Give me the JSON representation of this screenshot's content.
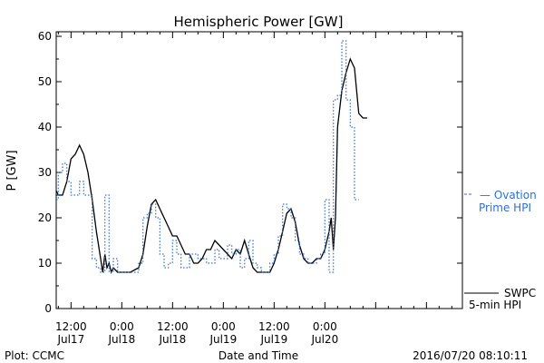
{
  "chart_data": {
    "type": "line",
    "title": "Hemispheric Power [GW]",
    "ylabel": "P [GW]",
    "xlabel": "Date and Time",
    "ylim": [
      0,
      61
    ],
    "yticks": [
      0,
      10,
      20,
      30,
      40,
      50,
      60
    ],
    "x_unit": "hours since 2016-07-17 00:00 UT",
    "xlim": [
      8.5,
      104.5
    ],
    "xticks": [
      {
        "x": 12,
        "line1": "12:00",
        "line2": "Jul17"
      },
      {
        "x": 24,
        "line1": "0:00",
        "line2": "Jul18"
      },
      {
        "x": 36,
        "line1": "12:00",
        "line2": "Jul18"
      },
      {
        "x": 48,
        "line1": "0:00",
        "line2": "Jul19"
      },
      {
        "x": 60,
        "line1": "12:00",
        "line2": "Jul19"
      },
      {
        "x": 72,
        "line1": "0:00",
        "line2": "Jul20"
      }
    ],
    "series": [
      {
        "name": "SWPC 5-min HPI",
        "color": "#000000",
        "style": "solid",
        "x": [
          8.5,
          9.0,
          10.0,
          11.0,
          12.0,
          13.0,
          14.0,
          15.0,
          16.0,
          17.0,
          18.0,
          19.0,
          19.5,
          20.0,
          20.5,
          21.0,
          21.5,
          22.0,
          23.0,
          24.0,
          26.0,
          28.0,
          29.0,
          30.0,
          31.0,
          32.0,
          33.0,
          34.0,
          35.0,
          36.0,
          37.0,
          38.0,
          39.0,
          40.0,
          41.0,
          42.0,
          43.0,
          44.0,
          45.0,
          46.0,
          47.0,
          48.0,
          49.0,
          50.0,
          51.0,
          52.0,
          53.0,
          54.0,
          55.0,
          56.0,
          57.0,
          58.0,
          59.0,
          60.0,
          61.0,
          62.0,
          63.0,
          64.0,
          65.0,
          66.0,
          67.0,
          68.0,
          69.0,
          70.0,
          71.0,
          72.0,
          73.0,
          73.5,
          74.0,
          74.5,
          75.0,
          76.0,
          77.0,
          78.0,
          79.0,
          80.0,
          81.0,
          82.0
        ],
        "y": [
          26,
          25,
          25,
          28,
          33,
          34,
          36,
          34,
          30,
          24,
          17,
          11,
          8,
          12,
          9,
          10,
          8,
          9,
          8,
          8,
          8,
          9,
          12,
          18,
          23,
          24,
          22,
          20,
          18,
          16,
          16,
          14,
          12,
          12,
          10,
          10,
          11,
          13,
          13,
          15,
          14,
          13,
          12,
          11,
          13,
          12,
          15,
          12,
          9,
          8,
          8,
          8,
          8,
          10,
          13,
          17,
          21,
          22,
          19,
          14,
          11,
          10,
          10,
          11,
          11,
          13,
          17,
          20,
          13,
          20,
          40,
          48,
          52,
          55,
          53,
          43,
          42,
          42
        ]
      },
      {
        "name": "Ovation Prime HPI",
        "color": "#2e6fd6",
        "style": "dotted",
        "x": [
          8.5,
          9.0,
          10.0,
          11.0,
          12.0,
          13.0,
          14.0,
          15.0,
          16.0,
          17.0,
          18.0,
          19.0,
          20.0,
          21.0,
          22.0,
          23.0,
          24.0,
          26.0,
          28.0,
          29.0,
          30.0,
          31.0,
          32.0,
          33.0,
          34.0,
          35.0,
          36.0,
          37.0,
          38.0,
          39.0,
          40.0,
          41.0,
          42.0,
          43.0,
          44.0,
          45.0,
          46.0,
          47.0,
          48.0,
          49.0,
          50.0,
          51.0,
          52.0,
          53.0,
          54.0,
          55.0,
          56.0,
          57.0,
          58.0,
          59.0,
          60.0,
          61.0,
          62.0,
          63.0,
          64.0,
          65.0,
          66.0,
          67.0,
          68.0,
          69.0,
          70.0,
          71.0,
          72.0,
          73.0,
          74.0,
          75.0,
          76.0,
          77.0,
          78.0,
          79.0,
          80.0
        ],
        "y": [
          24,
          30,
          32,
          28,
          25,
          25,
          28,
          25,
          25,
          11,
          9,
          8,
          25,
          8,
          11,
          8,
          8,
          8,
          10,
          20,
          21,
          23,
          20,
          12,
          9,
          10,
          15,
          12,
          9,
          9,
          12,
          12,
          11,
          11,
          10,
          10,
          13,
          11,
          11,
          14,
          12,
          13,
          9,
          11,
          15,
          10,
          9,
          8,
          8,
          10,
          12,
          16,
          23,
          22,
          20,
          15,
          12,
          11,
          10,
          10,
          11,
          12,
          24,
          8,
          46,
          47,
          59,
          46,
          40,
          24,
          24
        ]
      }
    ],
    "legend": [
      {
        "line1": "— Ovation",
        "line2": "Prime HPI",
        "color": "#2e6fd6"
      },
      {
        "line1": "SWPC",
        "line2": "5-min HPI",
        "color": "#000000"
      }
    ],
    "footer_left": "Plot: CCMC",
    "footer_right": "2016/07/20 08:10:11"
  }
}
